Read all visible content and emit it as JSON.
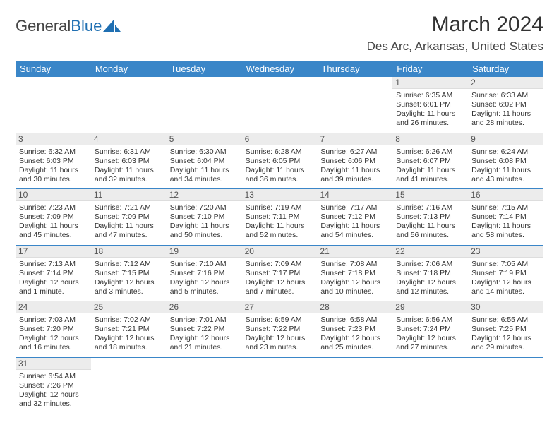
{
  "brand": {
    "part1": "General",
    "part2": "Blue"
  },
  "title": "March 2024",
  "location": "Des Arc, Arkansas, United States",
  "colors": {
    "header_bg": "#3a86c8",
    "header_fg": "#ffffff",
    "week_border": "#3a86c8",
    "daynum_bg": "#ececec"
  },
  "day_names": [
    "Sunday",
    "Monday",
    "Tuesday",
    "Wednesday",
    "Thursday",
    "Friday",
    "Saturday"
  ],
  "weeks": [
    [
      {
        "empty": true
      },
      {
        "empty": true
      },
      {
        "empty": true
      },
      {
        "empty": true
      },
      {
        "empty": true
      },
      {
        "n": "1",
        "sr": "Sunrise: 6:35 AM",
        "ss": "Sunset: 6:01 PM",
        "dl": "Daylight: 11 hours and 26 minutes."
      },
      {
        "n": "2",
        "sr": "Sunrise: 6:33 AM",
        "ss": "Sunset: 6:02 PM",
        "dl": "Daylight: 11 hours and 28 minutes."
      }
    ],
    [
      {
        "n": "3",
        "sr": "Sunrise: 6:32 AM",
        "ss": "Sunset: 6:03 PM",
        "dl": "Daylight: 11 hours and 30 minutes."
      },
      {
        "n": "4",
        "sr": "Sunrise: 6:31 AM",
        "ss": "Sunset: 6:03 PM",
        "dl": "Daylight: 11 hours and 32 minutes."
      },
      {
        "n": "5",
        "sr": "Sunrise: 6:30 AM",
        "ss": "Sunset: 6:04 PM",
        "dl": "Daylight: 11 hours and 34 minutes."
      },
      {
        "n": "6",
        "sr": "Sunrise: 6:28 AM",
        "ss": "Sunset: 6:05 PM",
        "dl": "Daylight: 11 hours and 36 minutes."
      },
      {
        "n": "7",
        "sr": "Sunrise: 6:27 AM",
        "ss": "Sunset: 6:06 PM",
        "dl": "Daylight: 11 hours and 39 minutes."
      },
      {
        "n": "8",
        "sr": "Sunrise: 6:26 AM",
        "ss": "Sunset: 6:07 PM",
        "dl": "Daylight: 11 hours and 41 minutes."
      },
      {
        "n": "9",
        "sr": "Sunrise: 6:24 AM",
        "ss": "Sunset: 6:08 PM",
        "dl": "Daylight: 11 hours and 43 minutes."
      }
    ],
    [
      {
        "n": "10",
        "sr": "Sunrise: 7:23 AM",
        "ss": "Sunset: 7:09 PM",
        "dl": "Daylight: 11 hours and 45 minutes."
      },
      {
        "n": "11",
        "sr": "Sunrise: 7:21 AM",
        "ss": "Sunset: 7:09 PM",
        "dl": "Daylight: 11 hours and 47 minutes."
      },
      {
        "n": "12",
        "sr": "Sunrise: 7:20 AM",
        "ss": "Sunset: 7:10 PM",
        "dl": "Daylight: 11 hours and 50 minutes."
      },
      {
        "n": "13",
        "sr": "Sunrise: 7:19 AM",
        "ss": "Sunset: 7:11 PM",
        "dl": "Daylight: 11 hours and 52 minutes."
      },
      {
        "n": "14",
        "sr": "Sunrise: 7:17 AM",
        "ss": "Sunset: 7:12 PM",
        "dl": "Daylight: 11 hours and 54 minutes."
      },
      {
        "n": "15",
        "sr": "Sunrise: 7:16 AM",
        "ss": "Sunset: 7:13 PM",
        "dl": "Daylight: 11 hours and 56 minutes."
      },
      {
        "n": "16",
        "sr": "Sunrise: 7:15 AM",
        "ss": "Sunset: 7:14 PM",
        "dl": "Daylight: 11 hours and 58 minutes."
      }
    ],
    [
      {
        "n": "17",
        "sr": "Sunrise: 7:13 AM",
        "ss": "Sunset: 7:14 PM",
        "dl": "Daylight: 12 hours and 1 minute."
      },
      {
        "n": "18",
        "sr": "Sunrise: 7:12 AM",
        "ss": "Sunset: 7:15 PM",
        "dl": "Daylight: 12 hours and 3 minutes."
      },
      {
        "n": "19",
        "sr": "Sunrise: 7:10 AM",
        "ss": "Sunset: 7:16 PM",
        "dl": "Daylight: 12 hours and 5 minutes."
      },
      {
        "n": "20",
        "sr": "Sunrise: 7:09 AM",
        "ss": "Sunset: 7:17 PM",
        "dl": "Daylight: 12 hours and 7 minutes."
      },
      {
        "n": "21",
        "sr": "Sunrise: 7:08 AM",
        "ss": "Sunset: 7:18 PM",
        "dl": "Daylight: 12 hours and 10 minutes."
      },
      {
        "n": "22",
        "sr": "Sunrise: 7:06 AM",
        "ss": "Sunset: 7:18 PM",
        "dl": "Daylight: 12 hours and 12 minutes."
      },
      {
        "n": "23",
        "sr": "Sunrise: 7:05 AM",
        "ss": "Sunset: 7:19 PM",
        "dl": "Daylight: 12 hours and 14 minutes."
      }
    ],
    [
      {
        "n": "24",
        "sr": "Sunrise: 7:03 AM",
        "ss": "Sunset: 7:20 PM",
        "dl": "Daylight: 12 hours and 16 minutes."
      },
      {
        "n": "25",
        "sr": "Sunrise: 7:02 AM",
        "ss": "Sunset: 7:21 PM",
        "dl": "Daylight: 12 hours and 18 minutes."
      },
      {
        "n": "26",
        "sr": "Sunrise: 7:01 AM",
        "ss": "Sunset: 7:22 PM",
        "dl": "Daylight: 12 hours and 21 minutes."
      },
      {
        "n": "27",
        "sr": "Sunrise: 6:59 AM",
        "ss": "Sunset: 7:22 PM",
        "dl": "Daylight: 12 hours and 23 minutes."
      },
      {
        "n": "28",
        "sr": "Sunrise: 6:58 AM",
        "ss": "Sunset: 7:23 PM",
        "dl": "Daylight: 12 hours and 25 minutes."
      },
      {
        "n": "29",
        "sr": "Sunrise: 6:56 AM",
        "ss": "Sunset: 7:24 PM",
        "dl": "Daylight: 12 hours and 27 minutes."
      },
      {
        "n": "30",
        "sr": "Sunrise: 6:55 AM",
        "ss": "Sunset: 7:25 PM",
        "dl": "Daylight: 12 hours and 29 minutes."
      }
    ],
    [
      {
        "n": "31",
        "sr": "Sunrise: 6:54 AM",
        "ss": "Sunset: 7:26 PM",
        "dl": "Daylight: 12 hours and 32 minutes."
      },
      {
        "empty": true
      },
      {
        "empty": true
      },
      {
        "empty": true
      },
      {
        "empty": true
      },
      {
        "empty": true
      },
      {
        "empty": true
      }
    ]
  ]
}
